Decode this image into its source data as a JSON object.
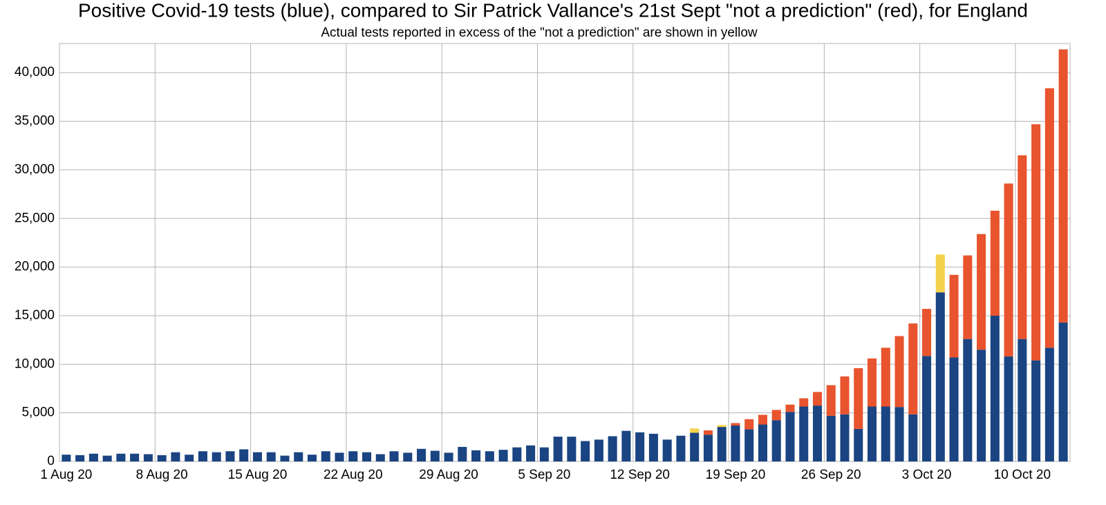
{
  "chart_data": {
    "type": "stacked_bar",
    "title": "Positive Covid-19 tests (blue), compared to Sir Patrick Vallance's 21st Sept \"not a prediction\" (red), for England",
    "subtitle": "Actual tests reported in excess of the \"not a prediction\" are shown in yellow",
    "categories": [
      "1 Aug 20",
      null,
      null,
      null,
      null,
      null,
      null,
      "8 Aug 20",
      null,
      null,
      null,
      null,
      null,
      null,
      "15 Aug 20",
      null,
      null,
      null,
      null,
      null,
      null,
      "22 Aug 20",
      null,
      null,
      null,
      null,
      null,
      null,
      "29 Aug 20",
      null,
      null,
      null,
      null,
      null,
      null,
      "5 Sep 20",
      null,
      null,
      null,
      null,
      null,
      null,
      "12 Sep 20",
      null,
      null,
      null,
      null,
      null,
      null,
      "19 Sep 20",
      null,
      null,
      null,
      null,
      null,
      null,
      "26 Sep 20",
      null,
      null,
      null,
      null,
      null,
      null,
      "3 Oct 20",
      null,
      null,
      null,
      null,
      null,
      null,
      "10 Oct 20",
      null,
      null,
      null
    ],
    "series": [
      {
        "color": "#1a4482",
        "values": [
          700,
          650,
          800,
          600,
          800,
          800,
          750,
          650,
          950,
          700,
          1050,
          950,
          1050,
          1250,
          950,
          950,
          600,
          950,
          700,
          1050,
          900,
          1050,
          950,
          750,
          1050,
          900,
          1300,
          1100,
          900,
          1500,
          1150,
          1050,
          1200,
          1450,
          1650,
          1450,
          2550,
          2550,
          2100,
          2250,
          2600,
          3150,
          3000,
          2850,
          2250,
          2650,
          2950,
          2750,
          3550,
          3700,
          3300,
          3800,
          4250,
          5100,
          5650,
          5750,
          4700,
          4850,
          3350,
          5650,
          5650,
          5600,
          4850,
          10850,
          17400,
          10700,
          12600,
          11500,
          15000,
          10800,
          12600,
          10400,
          11700,
          14300
        ]
      },
      {
        "color": "#e8542d",
        "values": [
          0,
          0,
          0,
          0,
          0,
          0,
          0,
          0,
          0,
          0,
          0,
          0,
          0,
          0,
          0,
          0,
          0,
          0,
          0,
          0,
          0,
          0,
          0,
          0,
          0,
          0,
          0,
          0,
          0,
          0,
          0,
          0,
          0,
          0,
          0,
          0,
          0,
          0,
          0,
          0,
          0,
          0,
          0,
          0,
          0,
          0,
          0,
          450,
          0,
          250,
          1050,
          1000,
          1050,
          750,
          850,
          1400,
          3150,
          3900,
          6250,
          4950,
          6050,
          7300,
          9350,
          4850,
          0,
          8500,
          8600,
          11900,
          10800,
          17800,
          18900,
          24300,
          26700,
          28100
        ]
      },
      {
        "color": "#f5d24e",
        "values": [
          0,
          0,
          0,
          0,
          0,
          0,
          0,
          0,
          0,
          0,
          0,
          0,
          0,
          0,
          0,
          0,
          0,
          0,
          0,
          0,
          0,
          0,
          0,
          0,
          0,
          0,
          0,
          0,
          0,
          0,
          0,
          0,
          0,
          0,
          0,
          0,
          0,
          0,
          0,
          0,
          0,
          0,
          0,
          0,
          0,
          0,
          450,
          0,
          200,
          0,
          0,
          0,
          0,
          0,
          0,
          0,
          0,
          0,
          0,
          0,
          0,
          0,
          0,
          0,
          3900,
          0,
          0,
          0,
          0,
          0,
          0,
          0,
          0,
          0
        ]
      }
    ],
    "ylim": [
      0,
      43000
    ],
    "yticks": [
      0,
      {
        "value": 5000,
        "label": "5,000"
      },
      {
        "value": 10000,
        "label": "10,000"
      },
      {
        "value": 15000,
        "label": "15,000"
      },
      {
        "value": 20000,
        "label": "20,000"
      },
      {
        "value": 25000,
        "label": "25,000"
      },
      {
        "value": 30000,
        "label": "30,000"
      },
      {
        "value": 35000,
        "label": "35,000"
      },
      {
        "value": 40000,
        "label": "40,000"
      }
    ],
    "grid": true
  }
}
